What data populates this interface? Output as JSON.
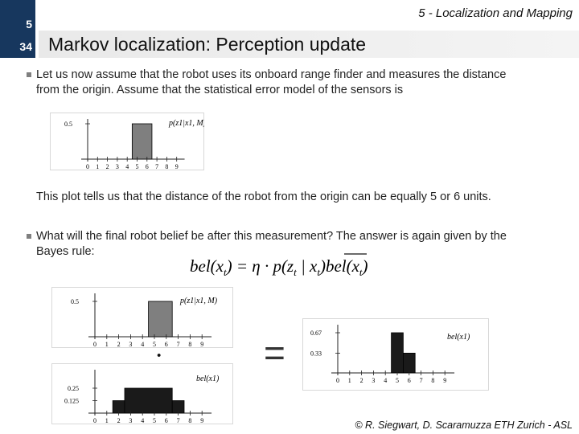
{
  "header": {
    "chapter": "5",
    "slide": "34",
    "section": "5 - Localization and Mapping",
    "title": "Markov localization: Perception update"
  },
  "bullets": [
    {
      "line1": "Let us now assume that the robot uses its onboard range finder and measures the distance",
      "line2": "from the origin. Assume that the statistical error model of the sensors is"
    },
    {
      "line1": "What will the final robot belief be after this measurement? The answer is again given by the",
      "line2": "Bayes rule:"
    }
  ],
  "explanation": "This plot tells us that the distance of the robot from the origin can be equally 5 or 6 units.",
  "equation": {
    "lhs": "bel(x",
    "sub_t": "t",
    "eq": ") = η · p(z",
    "mid": " | x",
    "rhs": ")bel(x",
    "close": ")"
  },
  "chart_data": [
    {
      "type": "bar",
      "name_label": "p(z1|x1, M)",
      "x": [
        0,
        1,
        2,
        3,
        4,
        5,
        6,
        7,
        8,
        9
      ],
      "bars": [
        {
          "x_start": 4.5,
          "x_end": 6.5,
          "value": 0.5
        }
      ],
      "yticks": [
        "0.5"
      ],
      "xtick_labels": [
        "0",
        "1",
        "2",
        "3",
        "4",
        "5",
        "6",
        "7",
        "8",
        "9"
      ]
    },
    {
      "type": "bar",
      "name_label": "p(z1|x1, M)",
      "x": [
        0,
        1,
        2,
        3,
        4,
        5,
        6,
        7,
        8,
        9
      ],
      "bars": [
        {
          "x_start": 4.5,
          "x_end": 6.5,
          "value": 0.5
        }
      ],
      "yticks": [
        "0.5"
      ],
      "xtick_labels": [
        "0",
        "1",
        "2",
        "3",
        "4",
        "5",
        "6",
        "7",
        "8",
        "9"
      ]
    },
    {
      "type": "bar",
      "name_label": "bel(x1)",
      "x": [
        0,
        1,
        2,
        3,
        4,
        5,
        6,
        7,
        8,
        9
      ],
      "bars": [
        {
          "x_start": 1.5,
          "x_end": 2.5,
          "value": 0.125
        },
        {
          "x_start": 2.5,
          "x_end": 6.5,
          "value": 0.25
        },
        {
          "x_start": 6.5,
          "x_end": 7.5,
          "value": 0.125
        }
      ],
      "yticks": [
        "0.25",
        "0.125"
      ],
      "xtick_labels": [
        "0",
        "1",
        "2",
        "3",
        "4",
        "5",
        "6",
        "7",
        "8",
        "9"
      ]
    },
    {
      "type": "bar",
      "name_label": "bel(x1)",
      "x": [
        0,
        1,
        2,
        3,
        4,
        5,
        6,
        7,
        8,
        9
      ],
      "bars": [
        {
          "x_start": 4.5,
          "x_end": 5.5,
          "value": 0.67
        },
        {
          "x_start": 5.5,
          "x_end": 6.5,
          "value": 0.33
        }
      ],
      "yticks": [
        "0.67",
        "0.33"
      ],
      "xtick_labels": [
        "0",
        "1",
        "2",
        "3",
        "4",
        "5",
        "6",
        "7",
        "8",
        "9"
      ]
    }
  ],
  "operators": {
    "dot": "·",
    "equals": "="
  },
  "footer": "© R. Siegwart, D. Scaramuzza ETH Zurich - ASL"
}
